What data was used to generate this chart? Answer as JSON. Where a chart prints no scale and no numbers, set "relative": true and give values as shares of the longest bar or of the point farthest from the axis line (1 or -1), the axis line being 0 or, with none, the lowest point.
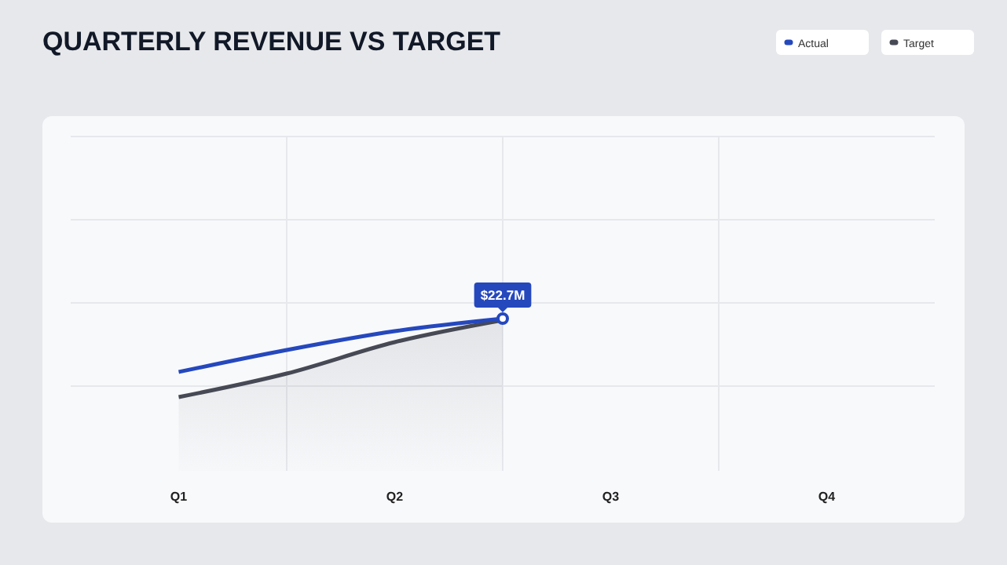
{
  "chart_data": {
    "type": "line",
    "title": "QUARTERLY REVENUE VS TARGET",
    "categories": [
      "Q1",
      null,
      "Q2",
      null,
      "Q3",
      null,
      "Q4"
    ],
    "relative": true,
    "annotations": [
      "$22.7M"
    ],
    "series": [
      {
        "name": "Actual",
        "color": "#2548bd",
        "values": [
          0.32,
          0.6,
          0.84,
          1,
          null,
          null,
          null
        ]
      },
      {
        "name": "Target",
        "type": "area",
        "color": "#474a55",
        "values": [
          0,
          0.3,
          0.7,
          0.98,
          null,
          null,
          null
        ]
      }
    ],
    "grid": true,
    "legend": "top right",
    "line_style": "solid"
  }
}
